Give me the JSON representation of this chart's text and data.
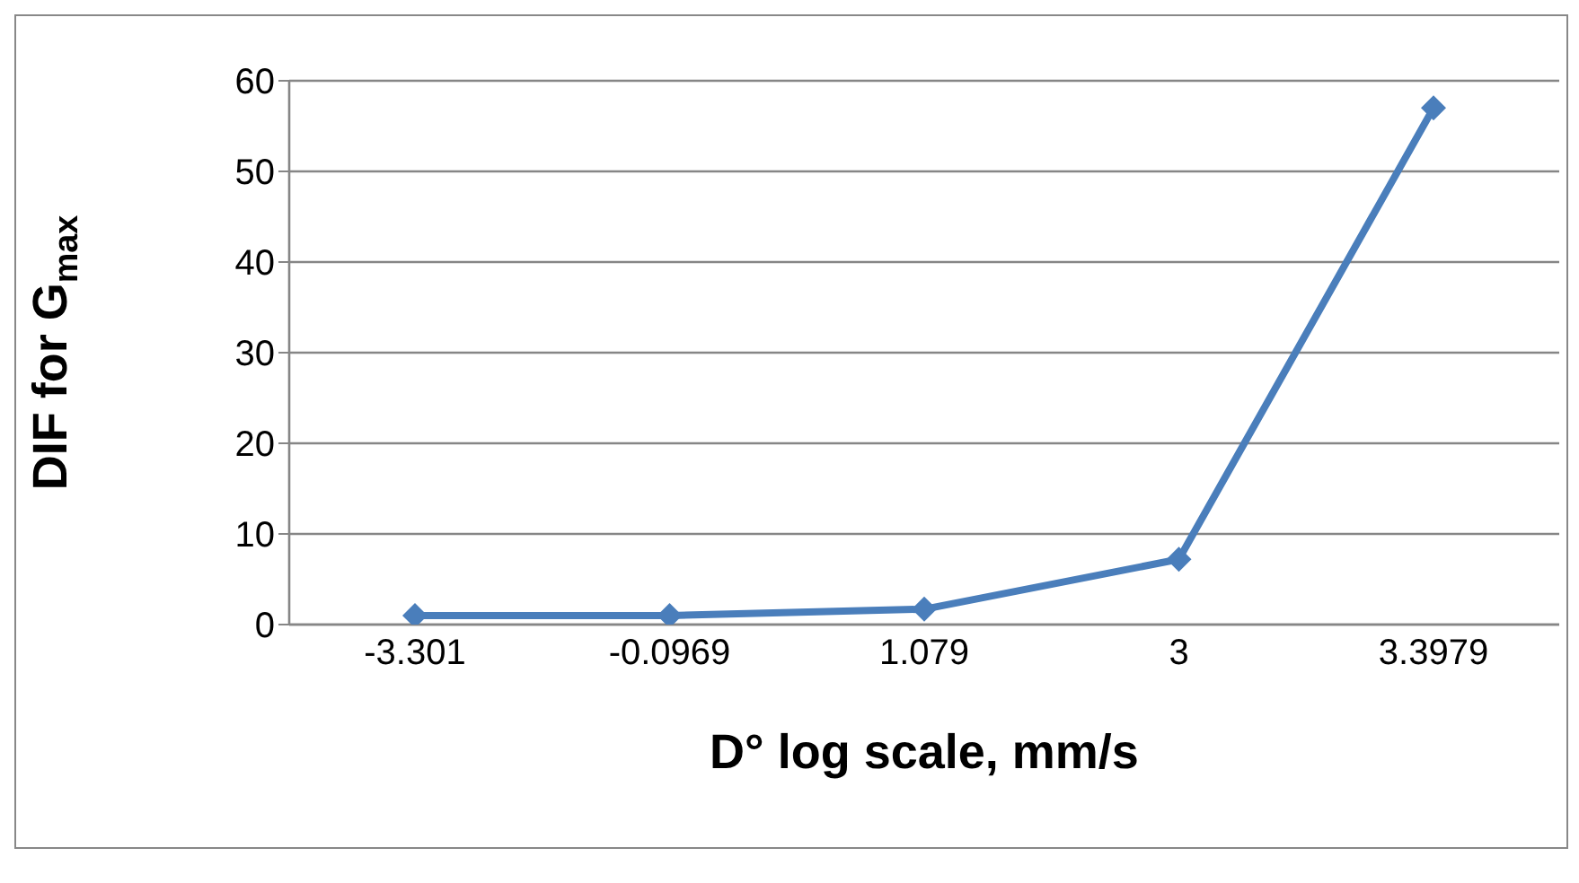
{
  "chart_data": {
    "type": "line",
    "xlabel": "D° log scale, mm/s",
    "ylabel": "DIF for G$_{max}$",
    "categories": [
      "-3.301",
      "-0.0969",
      "1.079",
      "3",
      "3.3979"
    ],
    "series": [
      {
        "color": "#4a7ebb",
        "values": [
          1,
          1,
          1.7,
          7.2,
          57
        ]
      }
    ],
    "ylim": [
      0,
      60
    ],
    "yticks": [
      0,
      10,
      20,
      30,
      40,
      50,
      60
    ],
    "grid": "y",
    "marker": "diamond",
    "line_style": "solid",
    "legend": false
  }
}
